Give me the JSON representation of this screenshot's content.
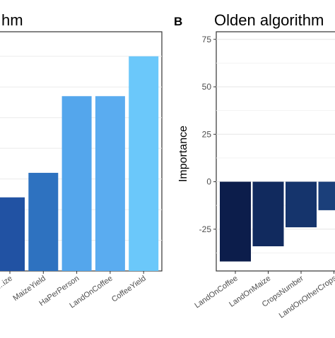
{
  "chart_data": [
    {
      "type": "bar",
      "panel_label": "",
      "title": "hm",
      "categories": [
        "...ize",
        "MaizeYield",
        "HaPerPerson",
        "LandOnCoffee",
        "CoffeeYield"
      ],
      "values": [
        0.24,
        0.32,
        0.57,
        0.57,
        0.7
      ],
      "bar_colors": [
        "#2152a3",
        "#2e72c0",
        "#54a6ec",
        "#5aacf0",
        "#6bc8fa"
      ],
      "ylim": [
        0,
        0.78
      ],
      "xlabel": "",
      "ylabel": "",
      "grid": true
    },
    {
      "type": "bar",
      "panel_label": "B",
      "title": "Olden algorithm",
      "categories": [
        "LandOnCoffee",
        "LandOnMaize",
        "CropsNumber",
        "LandOnOtherCrops"
      ],
      "values": [
        -42,
        -34,
        -24,
        -15
      ],
      "bar_colors": [
        "#0c1d4b",
        "#112a5e",
        "#15346c",
        "#1b3f7a"
      ],
      "yticks": [
        -25,
        0,
        25,
        50,
        75
      ],
      "ylim": [
        -47,
        79
      ],
      "xlabel": "",
      "ylabel": "Importance",
      "grid": true
    }
  ]
}
